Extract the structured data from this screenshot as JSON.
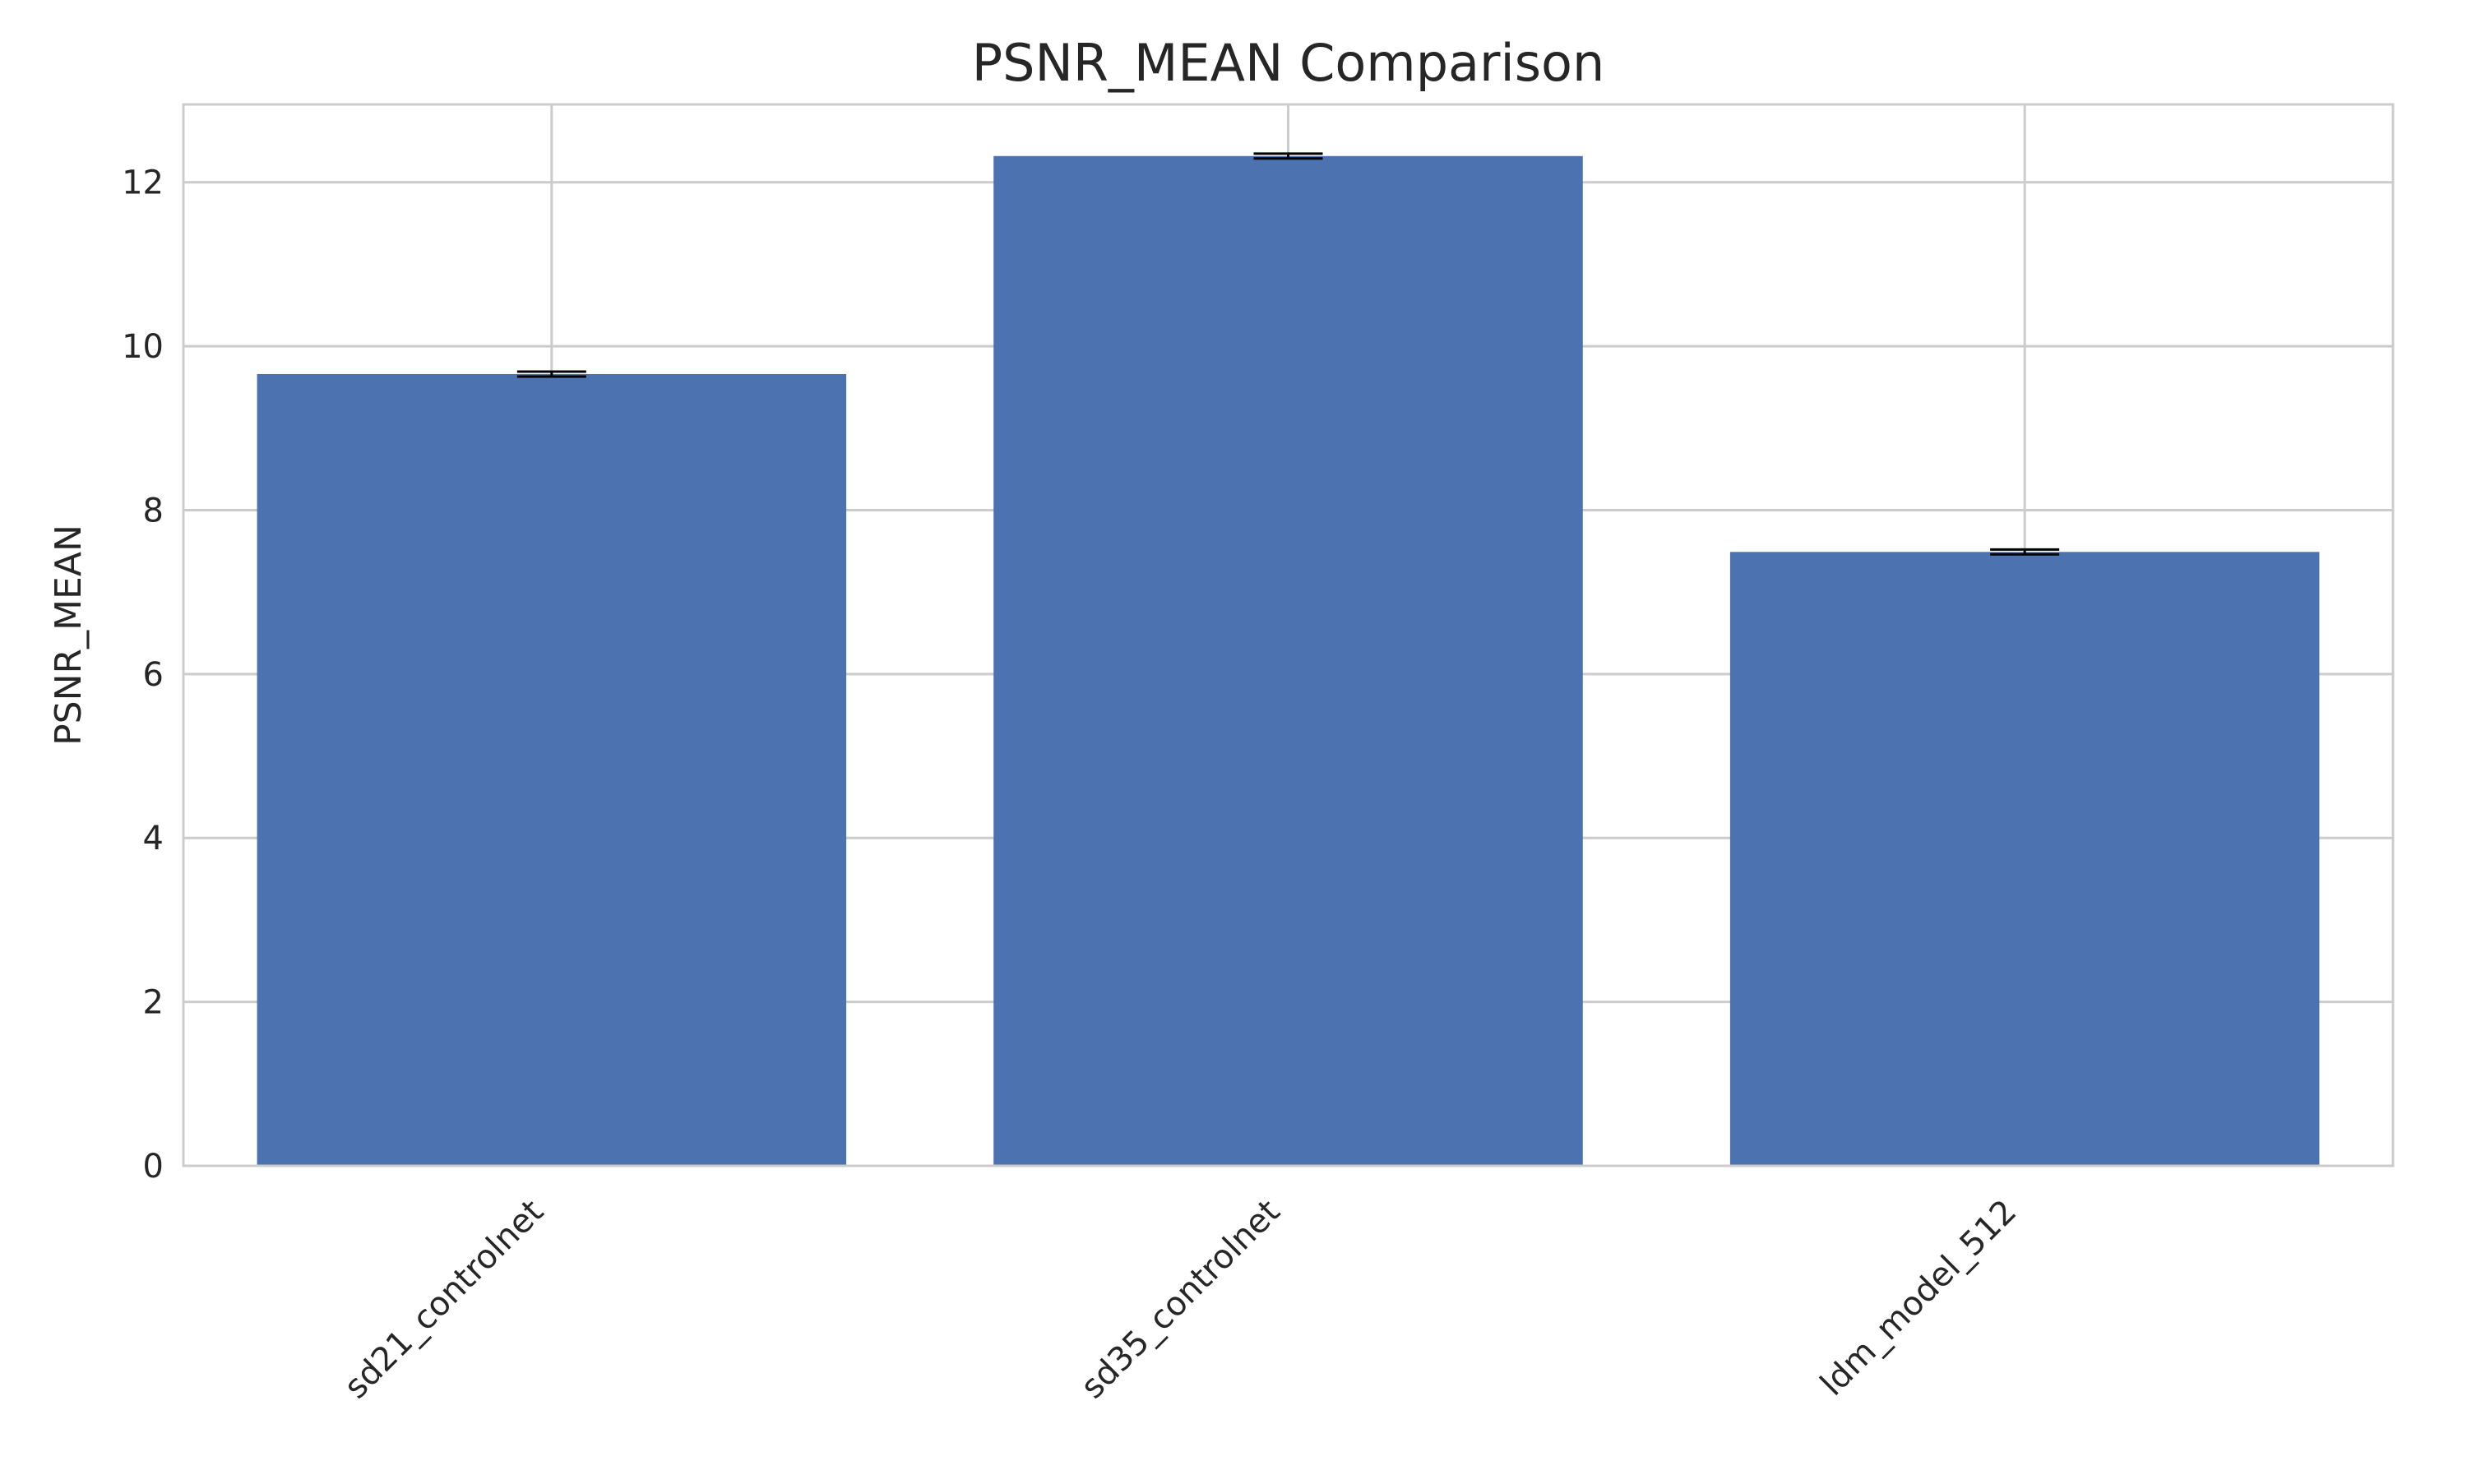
{
  "chart_data": {
    "type": "bar",
    "title": "PSNR_MEAN Comparison",
    "xlabel": "",
    "ylabel": "PSNR_MEAN",
    "categories": [
      "sd21_controlnet",
      "sd35_controlnet",
      "ldm_model_512"
    ],
    "values": [
      9.66,
      12.32,
      7.49
    ],
    "error": [
      0.03,
      0.03,
      0.03
    ],
    "ylim": [
      0,
      12.95
    ],
    "yticks": [
      0,
      2,
      4,
      6,
      8,
      10,
      12
    ],
    "grid": true,
    "bar_color": "#4c72b0",
    "errorbar_color": "#000000",
    "grid_color": "#cccccc"
  }
}
